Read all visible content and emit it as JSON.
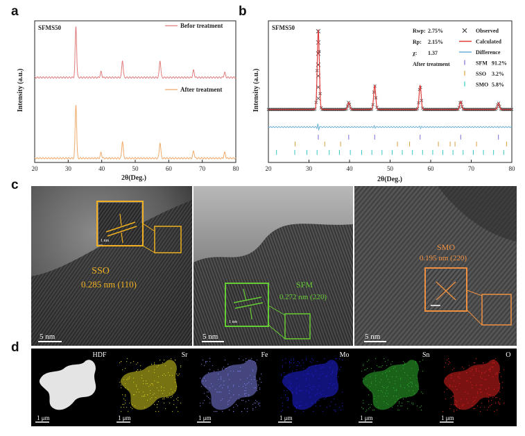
{
  "panels": {
    "a": "a",
    "b": "b",
    "c": "c",
    "d": "d"
  },
  "chart_data": [
    {
      "type": "line",
      "panel": "a",
      "sample": "SFMS50",
      "xlabel": "2θ(Deg.)",
      "ylabel": "Intensity (a.u.)",
      "xlim": [
        20,
        80
      ],
      "xticks": [
        20,
        30,
        40,
        50,
        60,
        70,
        80
      ],
      "series": [
        {
          "name": "Befor treatment",
          "color": "#e07a7a",
          "offset": 0.6,
          "peaks": [
            [
              32.3,
              0.36
            ],
            [
              39.8,
              0.04
            ],
            [
              46.2,
              0.12
            ],
            [
              57.4,
              0.12
            ],
            [
              67.4,
              0.05
            ],
            [
              76.7,
              0.035
            ]
          ]
        },
        {
          "name": "After treatment",
          "color": "#f0a868",
          "offset": 0.03,
          "peaks": [
            [
              32.3,
              0.38
            ],
            [
              39.8,
              0.04
            ],
            [
              46.2,
              0.12
            ],
            [
              57.4,
              0.11
            ],
            [
              67.4,
              0.05
            ],
            [
              76.7,
              0.04
            ]
          ]
        }
      ]
    },
    {
      "type": "scatter",
      "panel": "b",
      "sample": "SFMS50",
      "xlabel": "2θ(Deg.)",
      "ylabel": "Intensity (a.u.)",
      "xlim": [
        20,
        80
      ],
      "xticks": [
        20,
        30,
        40,
        50,
        60,
        70,
        80
      ],
      "condition": "After treatment",
      "fit_stats": [
        {
          "label": "Rwp:",
          "value": "2.75%"
        },
        {
          "label": "Rp:",
          "value": "2.15%"
        },
        {
          "label": "χ:",
          "value": "1.37"
        }
      ],
      "legend": [
        {
          "symbol": "×",
          "label": "Observed",
          "color": "#444444"
        },
        {
          "symbol": "line",
          "label": "Calculated",
          "color": "#e03a3a"
        },
        {
          "symbol": "line",
          "label": "Difference",
          "color": "#6ab0d8"
        },
        {
          "symbol": "|",
          "label": "SFM",
          "value": "91.2%",
          "color": "#7a6ad8"
        },
        {
          "symbol": "|",
          "label": "SSO",
          "value": "3.2%",
          "color": "#d8a040"
        },
        {
          "symbol": "|",
          "label": "SMO",
          "value": "5.8%",
          "color": "#30c8c8"
        }
      ],
      "peaks": [
        [
          32.3,
          1.0
        ],
        [
          39.8,
          0.09
        ],
        [
          46.2,
          0.3
        ],
        [
          57.4,
          0.3
        ],
        [
          67.4,
          0.1
        ],
        [
          76.7,
          0.08
        ]
      ],
      "tick_positions": {
        "SFM": [
          32.3,
          39.8,
          46.2,
          57.4,
          67.4,
          76.7
        ],
        "SSO": [
          26.6,
          33.9,
          37.8,
          51.8,
          54.8,
          61.9,
          64.8,
          66.0,
          71.3,
          78.7
        ],
        "SMO": [
          22.0,
          26.5,
          29.5,
          32.0,
          35.0,
          37.5,
          40.2,
          43.0,
          45.5,
          48.0,
          50.5,
          53.0,
          55.5,
          58.0,
          60.5,
          63.0,
          65.5,
          68.0,
          70.5,
          73.0,
          75.5,
          78.0
        ]
      }
    }
  ],
  "tem": [
    {
      "phase": "SSO",
      "spacing": "0.285 nm (110)",
      "scale": "5 nm",
      "inset_scale": "1 nm",
      "color": "#f0b020"
    },
    {
      "phase": "SFM",
      "spacing": "0.272 nm (220)",
      "scale": "5 nm",
      "inset_scale": "1 nm",
      "color": "#66cc33"
    },
    {
      "phase": "SMO",
      "spacing": "0.195 nm (220)",
      "scale": "5 nm",
      "color": "#f09040"
    }
  ],
  "eds": [
    {
      "label": "HDF",
      "scale": "1 μm",
      "color": "#f0f0f0"
    },
    {
      "label": "Sr",
      "scale": "1 μm",
      "color": "#d8d020"
    },
    {
      "label": "Fe",
      "scale": "1 μm",
      "color": "#8080e8"
    },
    {
      "label": "Mo",
      "scale": "1 μm",
      "color": "#2020e0"
    },
    {
      "label": "Sn",
      "scale": "1 μm",
      "color": "#30b030"
    },
    {
      "label": "O",
      "scale": "1 μm",
      "color": "#e02020"
    }
  ]
}
